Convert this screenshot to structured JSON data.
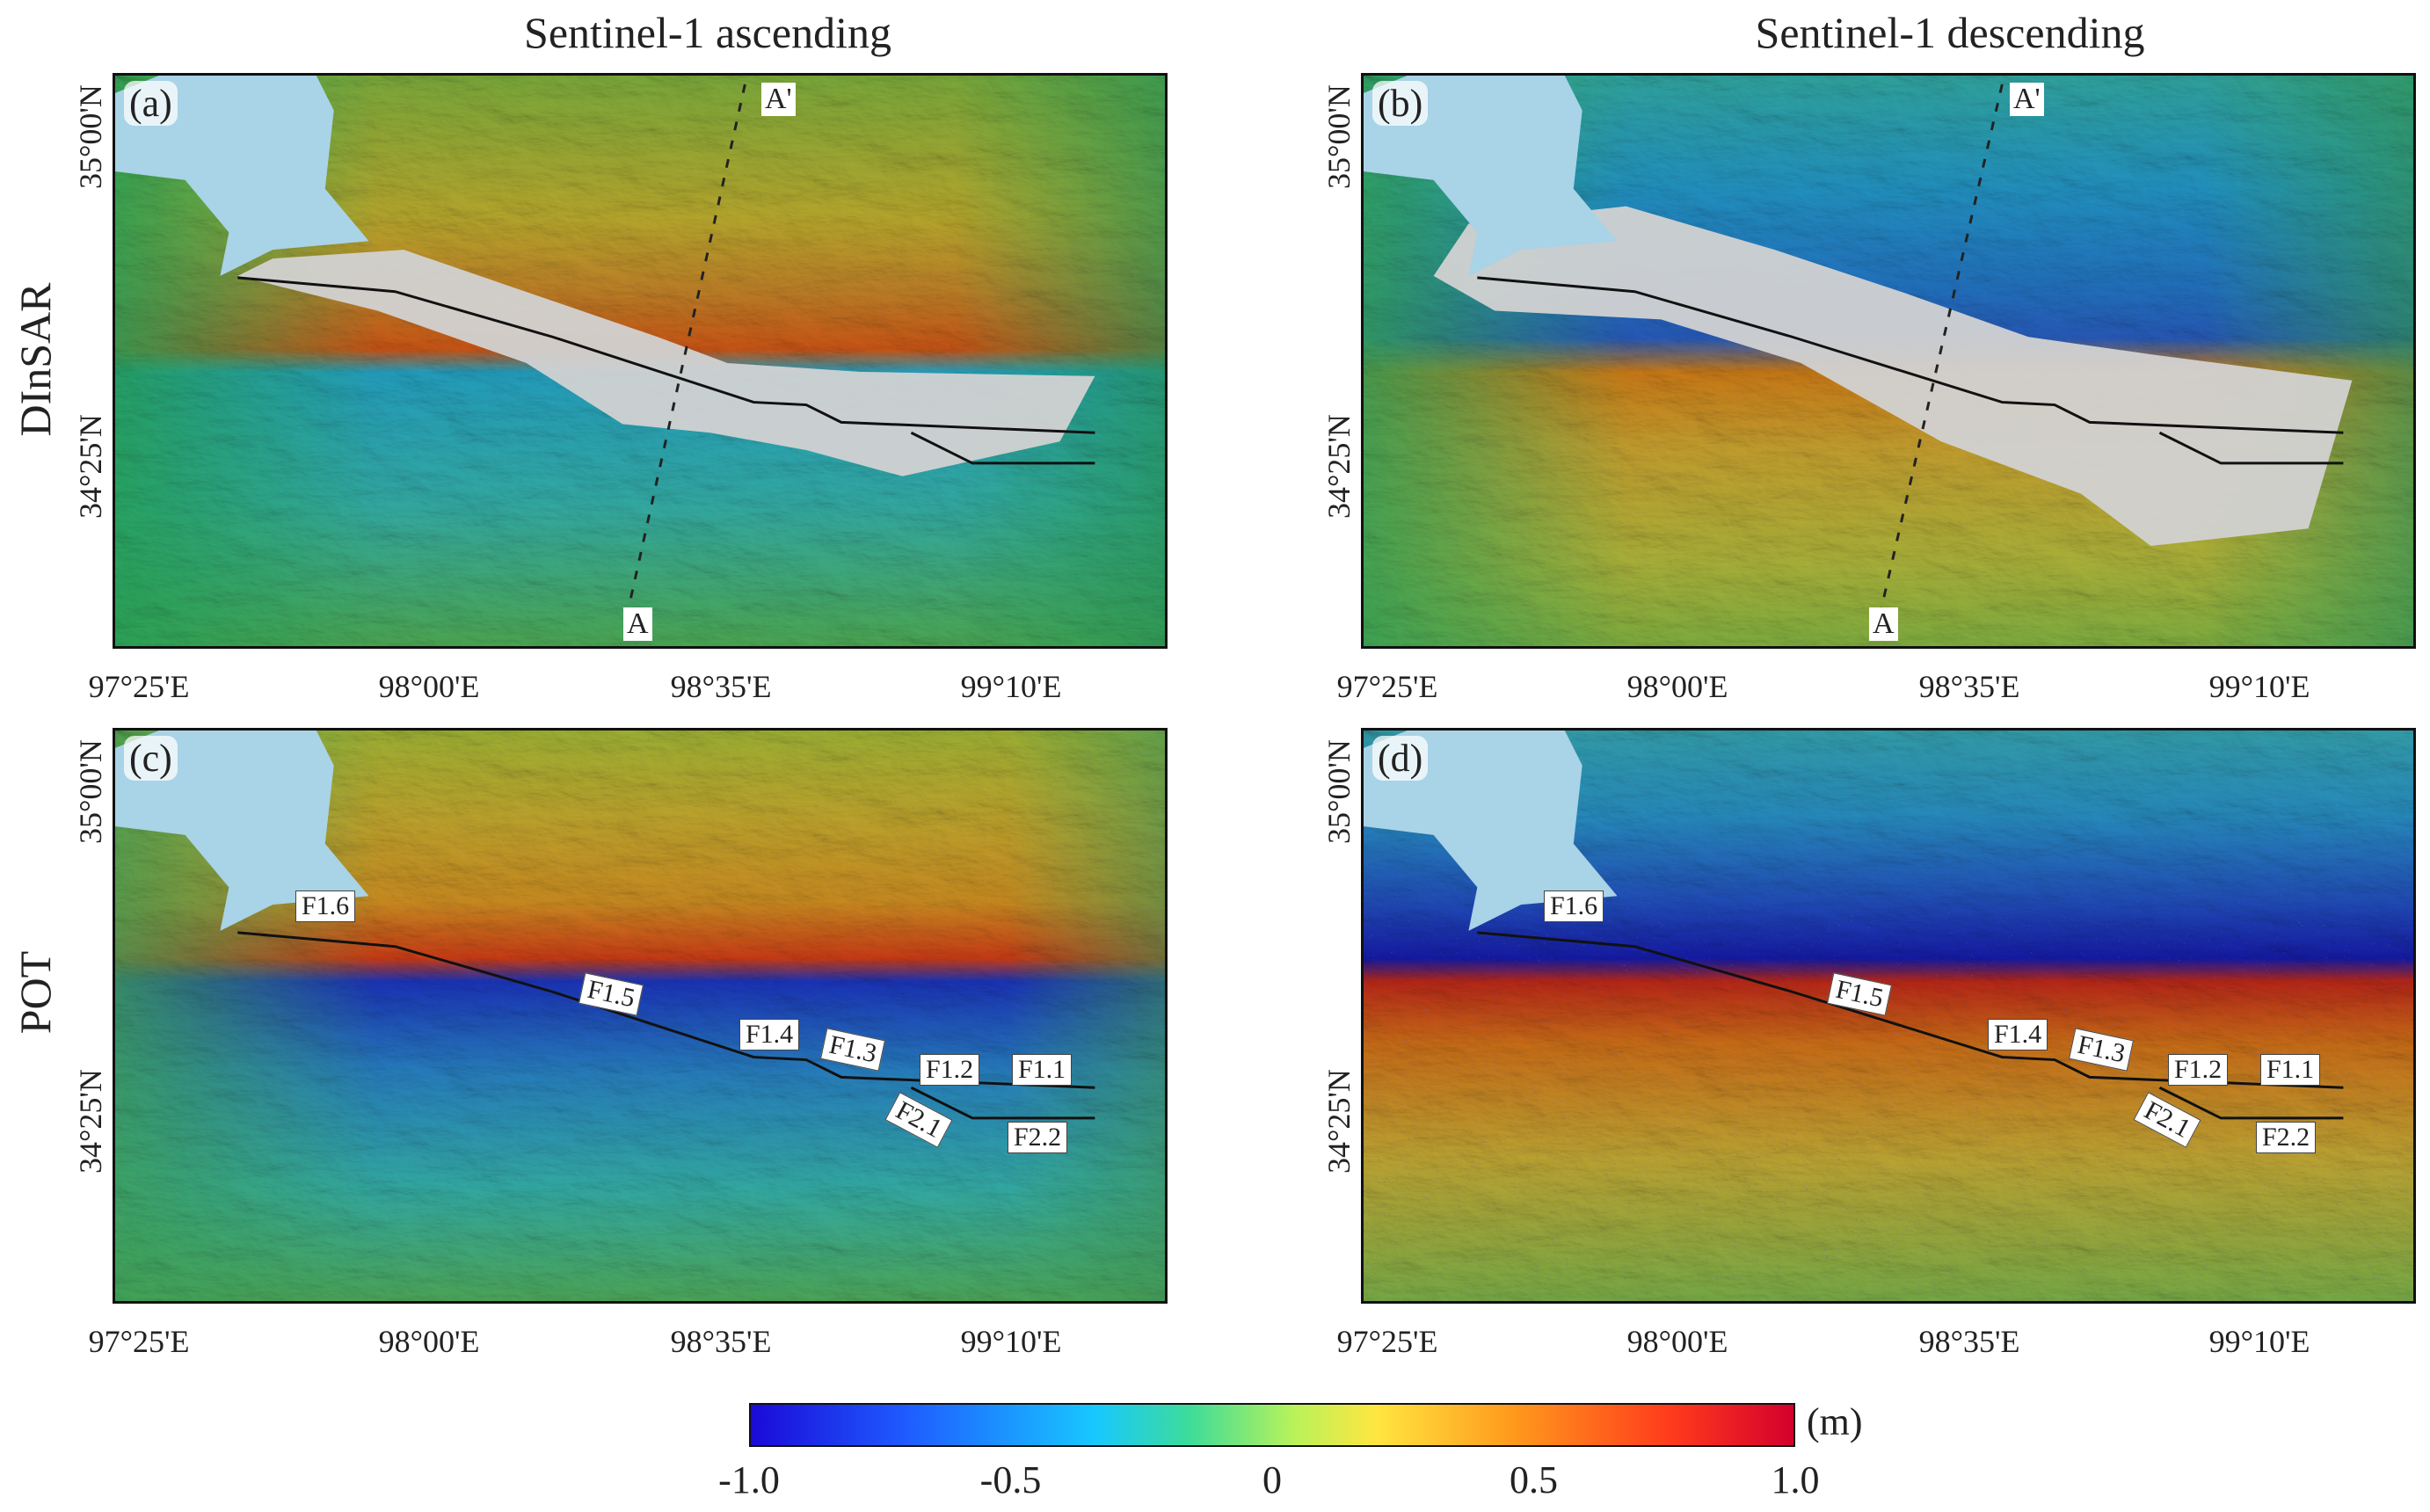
{
  "column_titles": [
    "Sentinel-1 ascending",
    "Sentinel-1 descending"
  ],
  "row_titles": [
    "DInSAR",
    "POT"
  ],
  "panels": [
    {
      "letter": "(a)",
      "row": 0,
      "col": 0,
      "profile": [
        "A",
        "A'"
      ],
      "fault_labels": []
    },
    {
      "letter": "(b)",
      "row": 0,
      "col": 1,
      "profile": [
        "A",
        "A'"
      ],
      "fault_labels": []
    },
    {
      "letter": "(c)",
      "row": 1,
      "col": 0,
      "profile": [],
      "fault_labels": [
        "F1.6",
        "F1.5",
        "F1.4",
        "F1.3",
        "F1.2",
        "F1.1",
        "F2.1",
        "F2.2"
      ]
    },
    {
      "letter": "(d)",
      "row": 1,
      "col": 1,
      "profile": [],
      "fault_labels": [
        "F1.6",
        "F1.5",
        "F1.4",
        "F1.3",
        "F1.2",
        "F1.1",
        "F2.1",
        "F2.2"
      ]
    }
  ],
  "lon_ticks": [
    "97°25'E",
    "98°00'E",
    "98°35'E",
    "99°10'E"
  ],
  "lat_ticks": [
    "35°00'N",
    "34°25'N"
  ],
  "colorbar": {
    "ticks": [
      "-1.0",
      "-0.5",
      "0",
      "0.5",
      "1.0"
    ],
    "unit": "(m)",
    "range": [
      -1.0,
      1.0
    ]
  },
  "colors": {
    "lake": "#a9d3e6",
    "decorrelated": "#cfcfcf",
    "fault": "#111111",
    "neg": "#1a0ad8",
    "pos": "#d4002c"
  }
}
